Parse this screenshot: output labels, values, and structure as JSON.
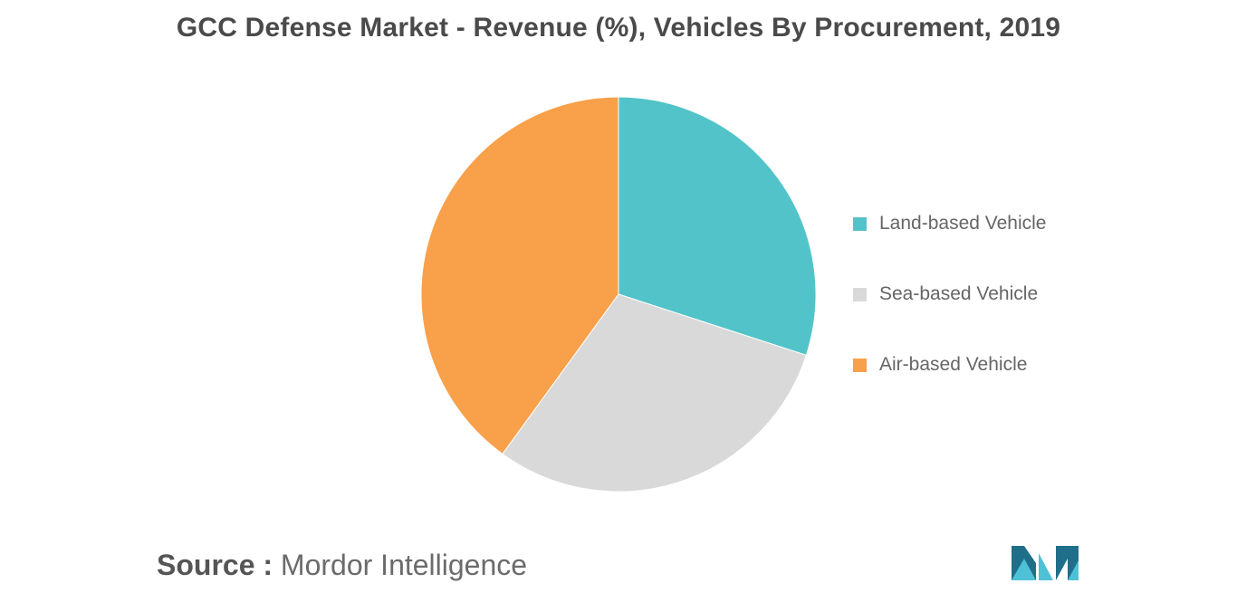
{
  "title": "GCC Defense Market - Revenue (%), Vehicles By Procurement, 2019",
  "chart_data": {
    "type": "pie",
    "title": "GCC Defense Market - Revenue (%), Vehicles By Procurement, 2019",
    "categories": [
      "Land-based Vehicle",
      "Sea-based Vehicle",
      "Air-based Vehicle"
    ],
    "values": [
      30,
      30,
      40
    ],
    "colors": [
      "#52c4c9",
      "#d9d9d9",
      "#f9a04a"
    ],
    "legend_position": "right",
    "start_angle": "12 o'clock, clockwise"
  },
  "source": {
    "label": "Source :",
    "value": "Mordor Intelligence"
  },
  "logo": {
    "icon": "mordor-intelligence-logo",
    "colors": [
      "#1f6f8b",
      "#4fc1d6"
    ]
  }
}
